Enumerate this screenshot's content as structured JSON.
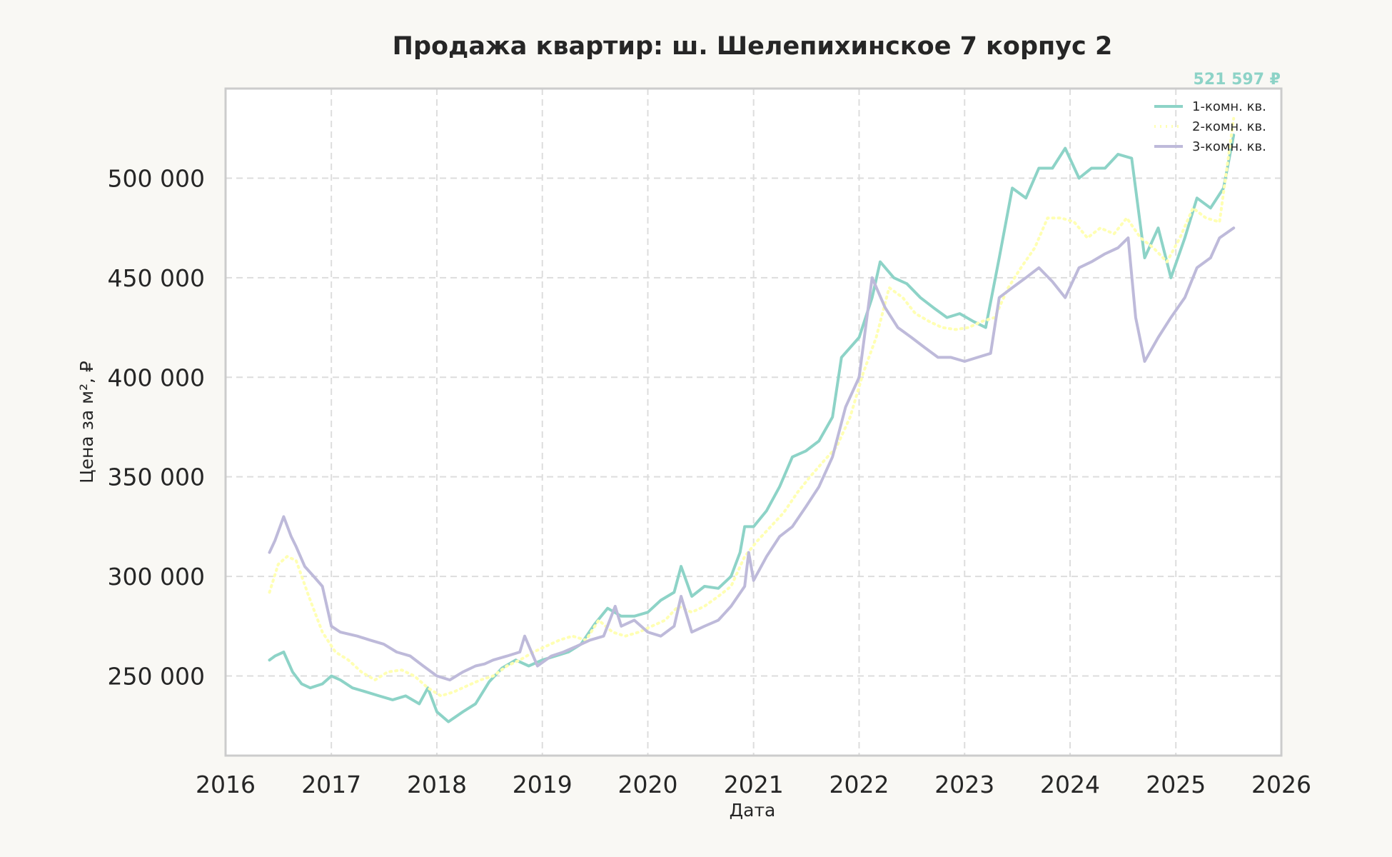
{
  "chart_data": {
    "type": "line",
    "title": "Продажа квартир: ш. Шелепихинское 7 корпус 2",
    "xlabel": "Дата",
    "ylabel": "Цена за м², ₽",
    "xlim": [
      "2016-01-01",
      "2026-01-01"
    ],
    "ylim": [
      210000,
      545000
    ],
    "x_ticks": [
      "2016",
      "2017",
      "2018",
      "2019",
      "2020",
      "2021",
      "2022",
      "2023",
      "2024",
      "2025",
      "2026"
    ],
    "y_ticks": [
      250000,
      300000,
      350000,
      400000,
      450000,
      500000
    ],
    "y_tick_labels": [
      "250 000",
      "300 000",
      "350 000",
      "400 000",
      "450 000",
      "500 000"
    ],
    "grid": true,
    "legend_position": "top-right",
    "last_value_label": "521 597 ₽",
    "series": [
      {
        "name": "1-комн. кв.",
        "color": "#8dd3c7",
        "dash": "solid",
        "x": [
          "2016-06-01",
          "2016-06-20",
          "2016-07-20",
          "2016-08-20",
          "2016-09-20",
          "2016-10-20",
          "2016-12-01",
          "2017-01-01",
          "2017-02-01",
          "2017-03-15",
          "2017-05-01",
          "2017-06-15",
          "2017-08-01",
          "2017-09-15",
          "2017-11-01",
          "2017-12-01",
          "2018-01-01",
          "2018-02-10",
          "2018-04-01",
          "2018-05-15",
          "2018-07-01",
          "2018-08-15",
          "2018-10-01",
          "2018-11-15",
          "2019-01-01",
          "2019-02-15",
          "2019-04-01",
          "2019-05-15",
          "2019-07-01",
          "2019-08-15",
          "2019-10-01",
          "2019-11-15",
          "2020-01-01",
          "2020-02-15",
          "2020-04-01",
          "2020-04-25",
          "2020-06-01",
          "2020-07-15",
          "2020-09-01",
          "2020-10-15",
          "2020-11-15",
          "2020-12-01",
          "2021-01-01",
          "2021-02-15",
          "2021-04-01",
          "2021-05-15",
          "2021-07-01",
          "2021-08-15",
          "2021-10-01",
          "2021-11-01",
          "2022-01-01",
          "2022-02-15",
          "2022-03-15",
          "2022-05-01",
          "2022-06-15",
          "2022-08-01",
          "2022-09-15",
          "2022-11-01",
          "2022-12-15",
          "2023-02-01",
          "2023-03-15",
          "2023-05-01",
          "2023-06-15",
          "2023-08-01",
          "2023-09-15",
          "2023-11-01",
          "2023-12-15",
          "2024-02-01",
          "2024-03-15",
          "2024-05-01",
          "2024-06-15",
          "2024-08-01",
          "2024-09-15",
          "2024-11-01",
          "2024-12-15",
          "2025-02-01",
          "2025-03-15",
          "2025-05-01",
          "2025-06-15",
          "2025-07-20"
        ],
        "values": [
          258000,
          260000,
          262000,
          252000,
          246000,
          244000,
          246000,
          250000,
          248000,
          244000,
          242000,
          240000,
          238000,
          240000,
          236000,
          244000,
          232000,
          227000,
          232000,
          236000,
          247000,
          254000,
          258000,
          255000,
          258000,
          260000,
          262000,
          266000,
          276000,
          284000,
          280000,
          280000,
          282000,
          288000,
          292000,
          305000,
          290000,
          295000,
          294000,
          300000,
          312000,
          325000,
          325000,
          333000,
          345000,
          360000,
          363000,
          368000,
          380000,
          410000,
          420000,
          440000,
          458000,
          450000,
          447000,
          440000,
          435000,
          430000,
          432000,
          428000,
          425000,
          460000,
          495000,
          490000,
          505000,
          505000,
          515000,
          500000,
          505000,
          505000,
          512000,
          510000,
          460000,
          475000,
          450000,
          470000,
          490000,
          485000,
          495000,
          521597
        ]
      },
      {
        "name": "2-комн. кв.",
        "color": "#ffffb3",
        "dash": "dotted",
        "x": [
          "2016-06-01",
          "2016-07-01",
          "2016-08-01",
          "2016-09-01",
          "2016-10-15",
          "2016-12-01",
          "2017-01-15",
          "2017-03-01",
          "2017-04-15",
          "2017-06-01",
          "2017-07-15",
          "2017-09-01",
          "2017-10-15",
          "2017-12-01",
          "2018-01-15",
          "2018-03-01",
          "2018-04-15",
          "2018-06-01",
          "2018-07-15",
          "2018-09-01",
          "2018-10-15",
          "2018-12-01",
          "2019-01-15",
          "2019-03-01",
          "2019-04-15",
          "2019-06-01",
          "2019-07-15",
          "2019-09-01",
          "2019-10-15",
          "2019-12-01",
          "2020-01-15",
          "2020-03-01",
          "2020-04-15",
          "2020-06-01",
          "2020-07-15",
          "2020-09-01",
          "2020-10-15",
          "2020-12-01",
          "2021-01-15",
          "2021-03-01",
          "2021-04-15",
          "2021-06-01",
          "2021-07-15",
          "2021-09-01",
          "2021-10-15",
          "2021-12-01",
          "2022-01-15",
          "2022-03-01",
          "2022-04-15",
          "2022-06-01",
          "2022-07-15",
          "2022-09-01",
          "2022-10-15",
          "2022-12-01",
          "2023-01-15",
          "2023-03-01",
          "2023-04-15",
          "2023-06-01",
          "2023-07-15",
          "2023-09-01",
          "2023-10-15",
          "2023-12-01",
          "2024-01-15",
          "2024-03-01",
          "2024-04-15",
          "2024-06-01",
          "2024-07-15",
          "2024-09-01",
          "2024-10-15",
          "2024-12-01",
          "2025-01-15",
          "2025-03-01",
          "2025-04-15",
          "2025-06-01",
          "2025-07-20"
        ],
        "values": [
          292000,
          306000,
          310000,
          308000,
          290000,
          272000,
          262000,
          258000,
          252000,
          248000,
          252000,
          253000,
          250000,
          244000,
          240000,
          242000,
          245000,
          248000,
          250000,
          255000,
          258000,
          262000,
          265000,
          268000,
          270000,
          268000,
          278000,
          272000,
          270000,
          272000,
          275000,
          278000,
          285000,
          282000,
          285000,
          290000,
          295000,
          310000,
          318000,
          325000,
          332000,
          342000,
          350000,
          358000,
          365000,
          380000,
          402000,
          420000,
          445000,
          440000,
          432000,
          428000,
          425000,
          424000,
          425000,
          428000,
          430000,
          445000,
          455000,
          465000,
          480000,
          480000,
          478000,
          470000,
          475000,
          472000,
          480000,
          470000,
          465000,
          458000,
          470000,
          485000,
          480000,
          478000,
          530000
        ]
      },
      {
        "name": "3-комн. кв.",
        "color": "#bebada",
        "dash": "solid",
        "x": [
          "2016-06-01",
          "2016-06-20",
          "2016-07-20",
          "2016-08-15",
          "2016-09-01",
          "2016-10-01",
          "2016-11-01",
          "2016-12-01",
          "2017-01-01",
          "2017-02-01",
          "2017-04-01",
          "2017-05-15",
          "2017-07-01",
          "2017-08-15",
          "2017-10-01",
          "2017-11-15",
          "2018-01-01",
          "2018-02-15",
          "2018-04-01",
          "2018-05-15",
          "2018-06-15",
          "2018-07-15",
          "2018-09-01",
          "2018-10-15",
          "2018-11-01",
          "2018-12-15",
          "2019-02-01",
          "2019-03-15",
          "2019-05-01",
          "2019-06-15",
          "2019-08-01",
          "2019-09-10",
          "2019-10-01",
          "2019-11-15",
          "2020-01-01",
          "2020-02-15",
          "2020-04-01",
          "2020-04-25",
          "2020-06-01",
          "2020-07-15",
          "2020-09-01",
          "2020-10-15",
          "2020-12-01",
          "2020-12-15",
          "2021-01-01",
          "2021-02-15",
          "2021-04-01",
          "2021-05-15",
          "2021-07-01",
          "2021-08-15",
          "2021-10-01",
          "2021-11-15",
          "2022-01-01",
          "2022-02-15",
          "2022-04-01",
          "2022-05-15",
          "2022-07-01",
          "2022-08-15",
          "2022-10-01",
          "2022-11-15",
          "2023-01-01",
          "2023-02-15",
          "2023-04-01",
          "2023-05-01",
          "2023-06-15",
          "2023-08-01",
          "2023-09-15",
          "2023-11-01",
          "2023-12-15",
          "2024-02-01",
          "2024-03-15",
          "2024-05-01",
          "2024-06-15",
          "2024-07-20",
          "2024-08-15",
          "2024-09-15",
          "2024-11-01",
          "2024-12-15",
          "2025-02-01",
          "2025-03-15",
          "2025-05-01",
          "2025-06-01",
          "2025-07-20"
        ],
        "values": [
          312000,
          318000,
          330000,
          320000,
          315000,
          305000,
          300000,
          295000,
          275000,
          272000,
          270000,
          268000,
          266000,
          262000,
          260000,
          255000,
          250000,
          248000,
          252000,
          255000,
          256000,
          258000,
          260000,
          262000,
          270000,
          255000,
          260000,
          262000,
          265000,
          268000,
          270000,
          285000,
          275000,
          278000,
          272000,
          270000,
          275000,
          290000,
          272000,
          275000,
          278000,
          285000,
          295000,
          312000,
          298000,
          310000,
          320000,
          325000,
          335000,
          345000,
          360000,
          385000,
          400000,
          450000,
          435000,
          425000,
          420000,
          415000,
          410000,
          410000,
          408000,
          410000,
          412000,
          440000,
          445000,
          450000,
          455000,
          448000,
          440000,
          455000,
          458000,
          462000,
          465000,
          470000,
          430000,
          408000,
          420000,
          430000,
          440000,
          455000,
          460000,
          470000,
          475000
        ]
      }
    ]
  }
}
